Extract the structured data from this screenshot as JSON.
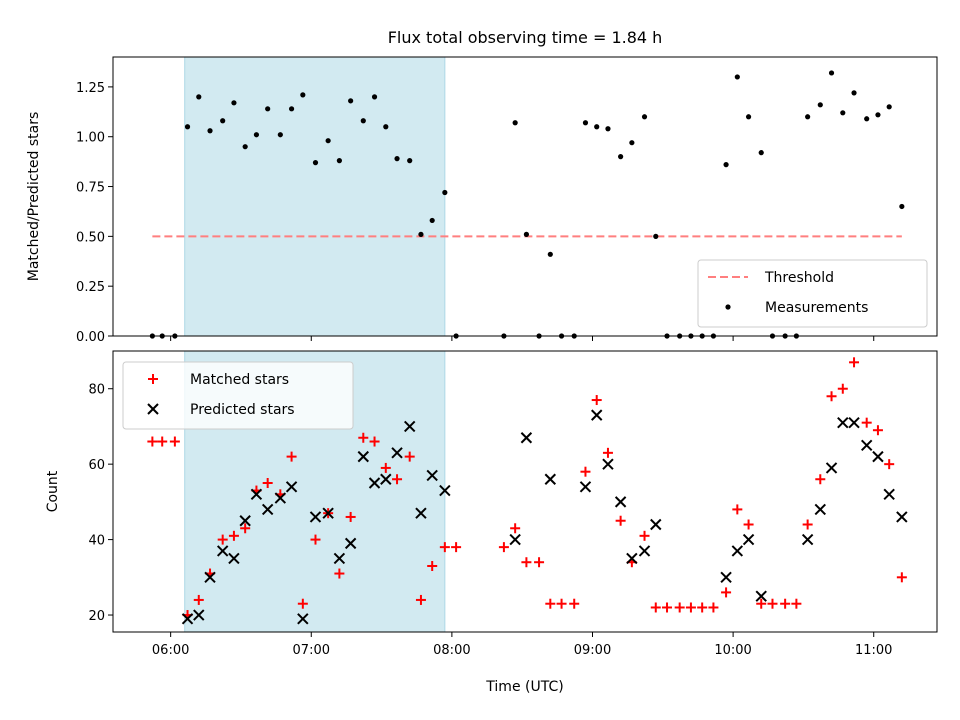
{
  "figure": {
    "title": "Flux total observing time = 1.84 h",
    "xlabel": "Time (UTC)",
    "highlight_color": "#add8e6",
    "x_tick_labels": [
      "06:00",
      "07:00",
      "08:00",
      "09:00",
      "10:00",
      "11:00"
    ]
  },
  "chart_data": [
    {
      "type": "scatter",
      "title": "Flux total observing time = 1.84 h",
      "xlabel": "",
      "ylabel": "Matched/Predicted stars",
      "xlim": [
        5.59,
        11.45
      ],
      "ylim": [
        0,
        1.4
      ],
      "yticks": [
        0.0,
        0.25,
        0.5,
        0.75,
        1.0,
        1.25
      ],
      "ytick_labels": [
        "0.00",
        "0.25",
        "0.50",
        "0.75",
        "1.00",
        "1.25"
      ],
      "highlight_span": [
        6.1,
        7.95
      ],
      "legend": "lower-right",
      "series": [
        {
          "name": "Threshold",
          "kind": "line",
          "color": "#ff7f7f",
          "x": [
            5.87,
            11.2
          ],
          "y": [
            0.5,
            0.5
          ]
        },
        {
          "name": "Measurements",
          "kind": "points",
          "color": "#000000",
          "x": [
            5.87,
            5.94,
            6.03,
            6.12,
            6.2,
            6.28,
            6.37,
            6.45,
            6.53,
            6.61,
            6.69,
            6.78,
            6.86,
            6.94,
            7.03,
            7.12,
            7.2,
            7.28,
            7.37,
            7.45,
            7.53,
            7.61,
            7.7,
            7.78,
            7.86,
            7.95,
            8.03,
            8.37,
            8.45,
            8.53,
            8.62,
            8.7,
            8.78,
            8.87,
            8.95,
            9.03,
            9.11,
            9.2,
            9.28,
            9.37,
            9.45,
            9.53,
            9.62,
            9.7,
            9.78,
            9.86,
            9.95,
            10.03,
            10.11,
            10.2,
            10.28,
            10.37,
            10.45,
            10.53,
            10.62,
            10.7,
            10.78,
            10.86,
            10.95,
            11.03,
            11.11,
            11.2
          ],
          "y": [
            0,
            0,
            0,
            1.05,
            1.2,
            1.03,
            1.08,
            1.17,
            0.95,
            1.01,
            1.14,
            1.01,
            1.14,
            1.21,
            0.87,
            0.98,
            0.88,
            1.18,
            1.08,
            1.2,
            1.05,
            0.89,
            0.88,
            0.51,
            0.58,
            0.72,
            0,
            0,
            1.07,
            0.51,
            0,
            0.41,
            0,
            0,
            1.07,
            1.05,
            1.04,
            0.9,
            0.97,
            1.1,
            0.5,
            0,
            0,
            0,
            0,
            0,
            0.86,
            1.3,
            1.1,
            0.92,
            0,
            0,
            0,
            1.1,
            1.16,
            1.32,
            1.12,
            1.22,
            1.09,
            1.11,
            1.15,
            0.65
          ]
        }
      ]
    },
    {
      "type": "scatter",
      "title": "",
      "xlabel": "Time (UTC)",
      "ylabel": "Count",
      "xlim": [
        5.59,
        11.45
      ],
      "ylim": [
        15.5,
        90
      ],
      "yticks": [
        20,
        40,
        60,
        80
      ],
      "ytick_labels": [
        "20",
        "40",
        "60",
        "80"
      ],
      "xticks": [
        6,
        7,
        8,
        9,
        10,
        11
      ],
      "xtick_labels": [
        "06:00",
        "07:00",
        "08:00",
        "09:00",
        "10:00",
        "11:00"
      ],
      "highlight_span": [
        6.1,
        7.95
      ],
      "legend": "upper-left",
      "series": [
        {
          "name": "Matched stars",
          "kind": "plus",
          "color": "#ff0000",
          "x": [
            5.87,
            5.94,
            6.03,
            6.12,
            6.2,
            6.28,
            6.37,
            6.45,
            6.53,
            6.61,
            6.69,
            6.78,
            6.86,
            6.94,
            7.03,
            7.12,
            7.2,
            7.28,
            7.37,
            7.45,
            7.53,
            7.61,
            7.7,
            7.78,
            7.86,
            7.95,
            8.03,
            8.37,
            8.45,
            8.53,
            8.62,
            8.7,
            8.78,
            8.87,
            8.95,
            9.03,
            9.11,
            9.2,
            9.28,
            9.37,
            9.45,
            9.53,
            9.62,
            9.7,
            9.78,
            9.86,
            9.95,
            10.03,
            10.11,
            10.2,
            10.28,
            10.37,
            10.45,
            10.53,
            10.62,
            10.7,
            10.78,
            10.86,
            10.95,
            11.03,
            11.11,
            11.2
          ],
          "y": [
            66,
            66,
            66,
            20,
            24,
            31,
            40,
            41,
            43,
            53,
            55,
            52,
            62,
            23,
            40,
            47,
            31,
            46,
            67,
            66,
            59,
            56,
            62,
            24,
            33,
            38,
            38,
            38,
            43,
            34,
            34,
            23,
            23,
            23,
            58,
            77,
            63,
            45,
            34,
            41,
            22,
            22,
            22,
            22,
            22,
            22,
            26,
            48,
            44,
            23,
            23,
            23,
            23,
            44,
            56,
            78,
            80,
            87,
            71,
            69,
            60,
            30
          ]
        },
        {
          "name": "Predicted stars",
          "kind": "x",
          "color": "#000000",
          "x": [
            6.12,
            6.2,
            6.28,
            6.37,
            6.45,
            6.53,
            6.61,
            6.69,
            6.78,
            6.86,
            6.94,
            7.03,
            7.12,
            7.2,
            7.28,
            7.37,
            7.45,
            7.53,
            7.61,
            7.7,
            7.78,
            7.86,
            7.95,
            8.45,
            8.53,
            8.7,
            8.95,
            9.03,
            9.11,
            9.2,
            9.28,
            9.37,
            9.45,
            9.95,
            10.03,
            10.11,
            10.2,
            10.53,
            10.62,
            10.7,
            10.78,
            10.86,
            10.95,
            11.03,
            11.11,
            11.2
          ],
          "y": [
            19,
            20,
            30,
            37,
            35,
            45,
            52,
            48,
            51,
            54,
            19,
            46,
            47,
            35,
            39,
            62,
            55,
            56,
            63,
            70,
            47,
            57,
            53,
            40,
            67,
            56,
            54,
            73,
            60,
            50,
            35,
            37,
            44,
            30,
            37,
            40,
            25,
            40,
            48,
            59,
            71,
            71,
            65,
            62,
            52,
            46
          ]
        }
      ]
    }
  ]
}
